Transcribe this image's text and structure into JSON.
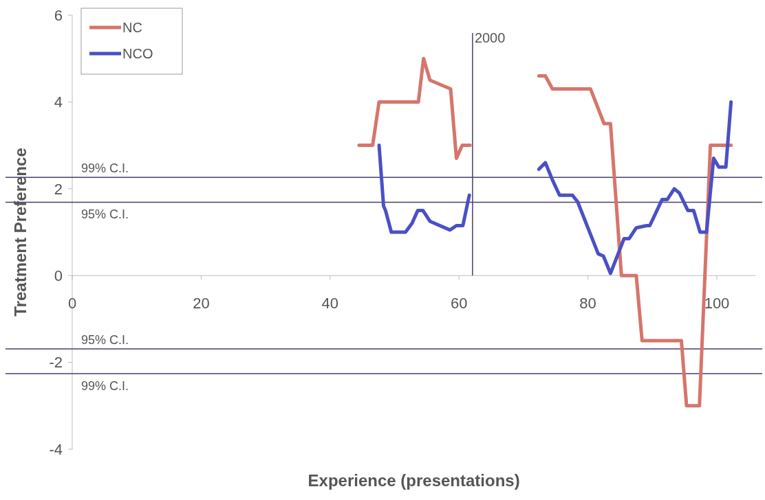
{
  "chart_data": {
    "type": "line",
    "xlabel": "Experience (presentations)",
    "ylabel": "Treatment Preference",
    "xlim": [
      0,
      106
    ],
    "ylim": [
      -4,
      6
    ],
    "xticks": [
      0,
      20,
      40,
      60,
      80,
      100
    ],
    "yticks": [
      -4,
      -2,
      0,
      2,
      4,
      6
    ],
    "grid": false,
    "legend": "top left",
    "marker": "none",
    "line_style": "solid",
    "series": [
      {
        "name": "NC",
        "color": "#d6756b",
        "x": [
          44.5,
          46.6,
          47.6,
          53.7,
          54.5,
          55.5,
          58.7,
          59.6,
          60.5,
          61.7,
          67,
          72.4,
          73.4,
          74.5,
          80.4,
          82.5,
          83.5,
          85.2,
          87.5,
          88.4,
          94.5,
          95.3,
          97.3,
          99.0,
          102.2
        ],
        "values": [
          3.0,
          3.0,
          4.0,
          4.0,
          5.0,
          4.5,
          4.3,
          2.7,
          3.0,
          3.0,
          null,
          4.6,
          4.6,
          4.3,
          4.3,
          3.5,
          3.5,
          0,
          0,
          -1.5,
          -1.5,
          -3.0,
          -3.0,
          3.0,
          3.0
        ]
      },
      {
        "name": "NCO",
        "color": "#4a50c4",
        "x": [
          47.6,
          48.3,
          48.6,
          49.5,
          51.7,
          52.7,
          53.6,
          54.4,
          55.5,
          58.6,
          59.6,
          60.6,
          61.6,
          67,
          72.4,
          73.4,
          74.5,
          75.6,
          77.6,
          78.4,
          81.6,
          82.4,
          83.5,
          85.6,
          86.4,
          87.5,
          89.1,
          89.6,
          91.5,
          92.3,
          93.4,
          94.2,
          95.5,
          96.4,
          97.4,
          98.4,
          99.5,
          100.3,
          101.4,
          102.2
        ],
        "values": [
          3.0,
          1.6,
          1.5,
          1.0,
          1.0,
          1.2,
          1.5,
          1.5,
          1.25,
          1.05,
          1.15,
          1.15,
          1.85,
          null,
          2.45,
          2.6,
          2.2,
          1.85,
          1.85,
          1.7,
          0.5,
          0.45,
          0.05,
          0.85,
          0.85,
          1.1,
          1.15,
          1.15,
          1.75,
          1.75,
          2.0,
          1.9,
          1.5,
          1.5,
          1.0,
          1.0,
          2.7,
          2.5,
          2.5,
          4.0
        ]
      }
    ],
    "ref_lines": [
      {
        "axis": "y",
        "value": 2.26,
        "label": "99% C.I.",
        "color": "#4a3d6e"
      },
      {
        "axis": "y",
        "value": 1.69,
        "label": "95% C.I.",
        "color": "#4a3d6e"
      },
      {
        "axis": "y",
        "value": -1.69,
        "label": "95% C.I.",
        "color": "#4a3d6e"
      },
      {
        "axis": "y",
        "value": -2.26,
        "label": "99% C.I.",
        "color": "#4a3d6e"
      },
      {
        "axis": "x",
        "value": 62.1,
        "color": "#4a3d6e"
      }
    ],
    "annotations": [
      "2000"
    ]
  }
}
